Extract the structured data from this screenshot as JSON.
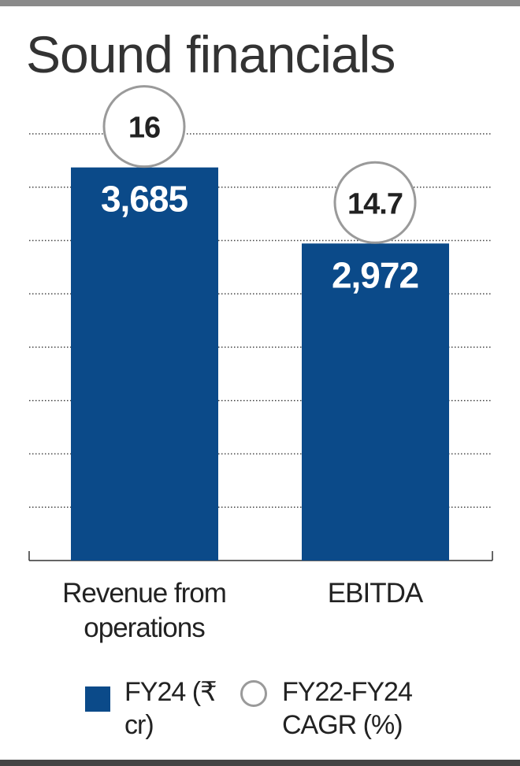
{
  "chart_data": {
    "type": "bar",
    "title": "Sound financials",
    "categories": [
      "Revenue from operations",
      "EBITDA"
    ],
    "series": [
      {
        "name": "FY24 (₹ cr)",
        "color": "#0b4a89",
        "values": [
          3685,
          2972
        ],
        "value_labels": [
          "3,685",
          "2,972"
        ]
      },
      {
        "name": "FY22-FY24 CAGR (%)",
        "color": "#9a9a9a",
        "marker": "circle",
        "values": [
          16,
          14.7
        ]
      }
    ],
    "ylim": [
      0,
      4000
    ],
    "yticks": [
      0,
      500,
      1000,
      1500,
      2000,
      2500,
      3000,
      3500,
      4000
    ],
    "grid": true
  }
}
